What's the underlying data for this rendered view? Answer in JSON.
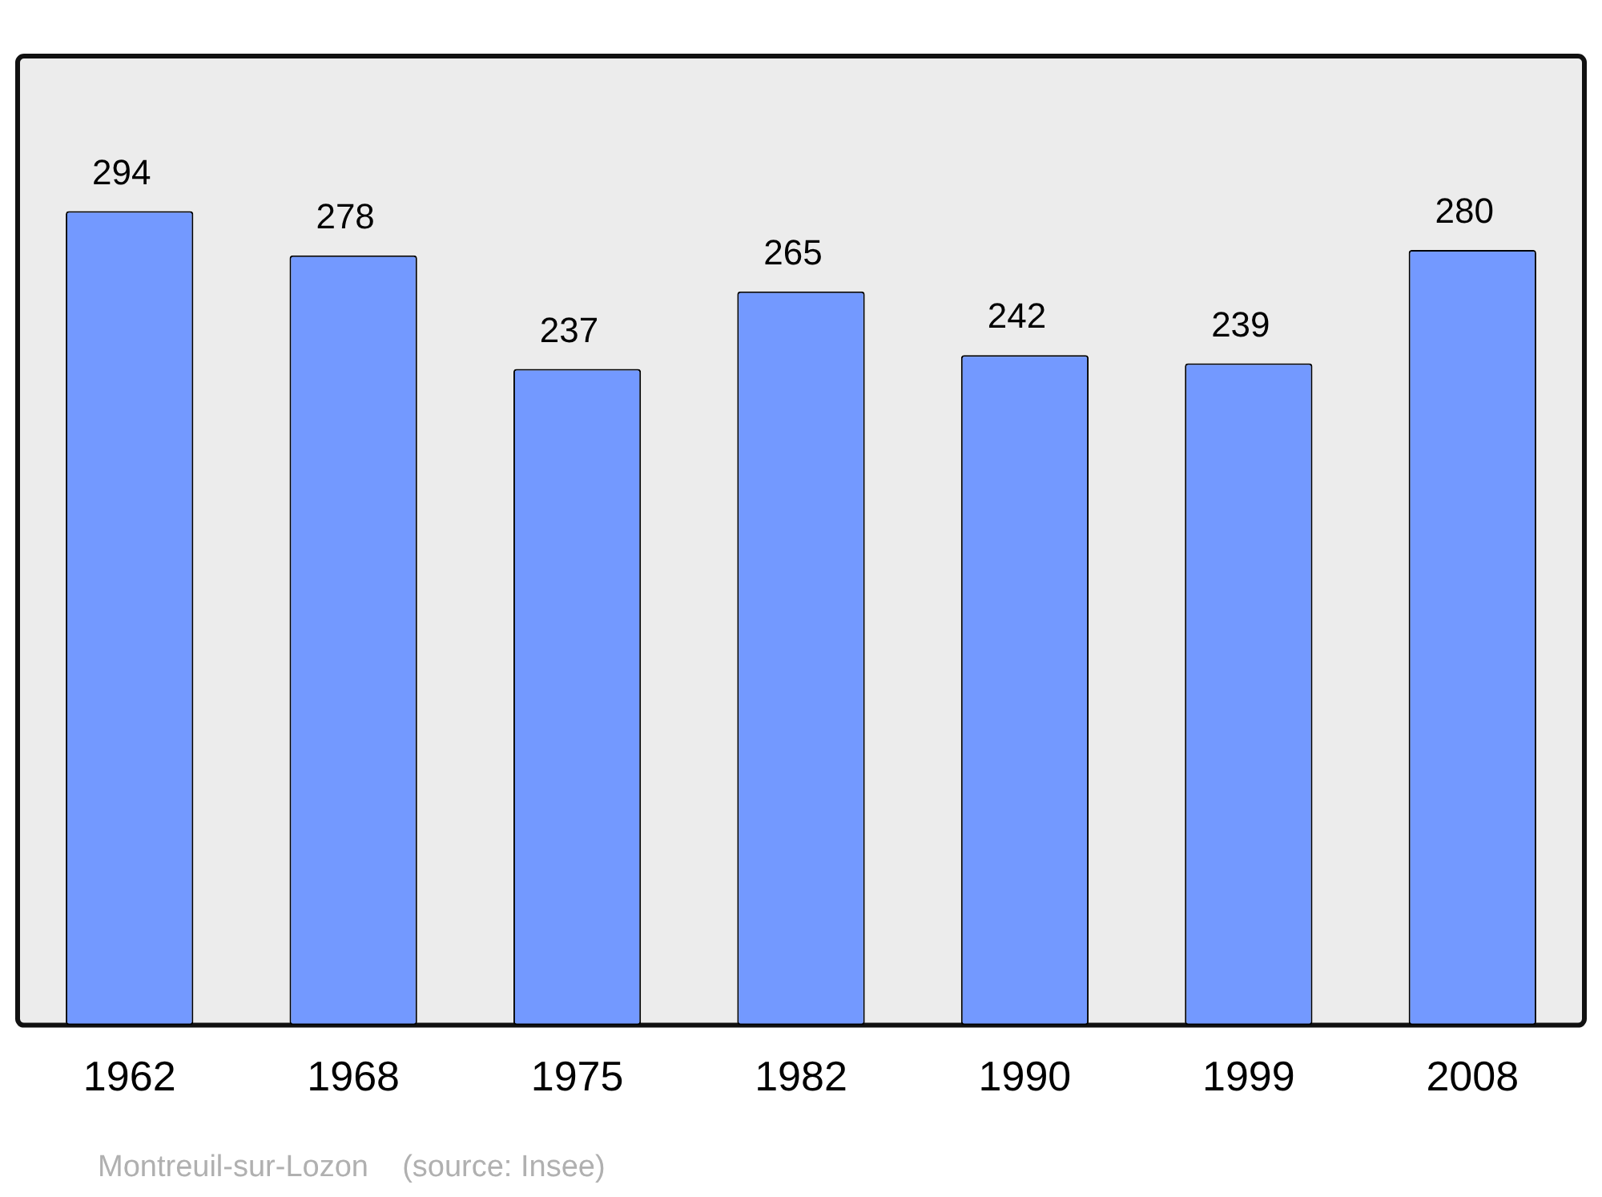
{
  "chart_data": {
    "type": "bar",
    "categories": [
      "1962",
      "1968",
      "1975",
      "1982",
      "1990",
      "1999",
      "2008"
    ],
    "values": [
      294,
      278,
      237,
      265,
      242,
      239,
      280
    ],
    "color": "#7399ff",
    "data_labels": true,
    "grid": false,
    "legend": false,
    "annotations": [
      "Montreuil-sur-Lozon    (source: Insee)"
    ]
  }
}
